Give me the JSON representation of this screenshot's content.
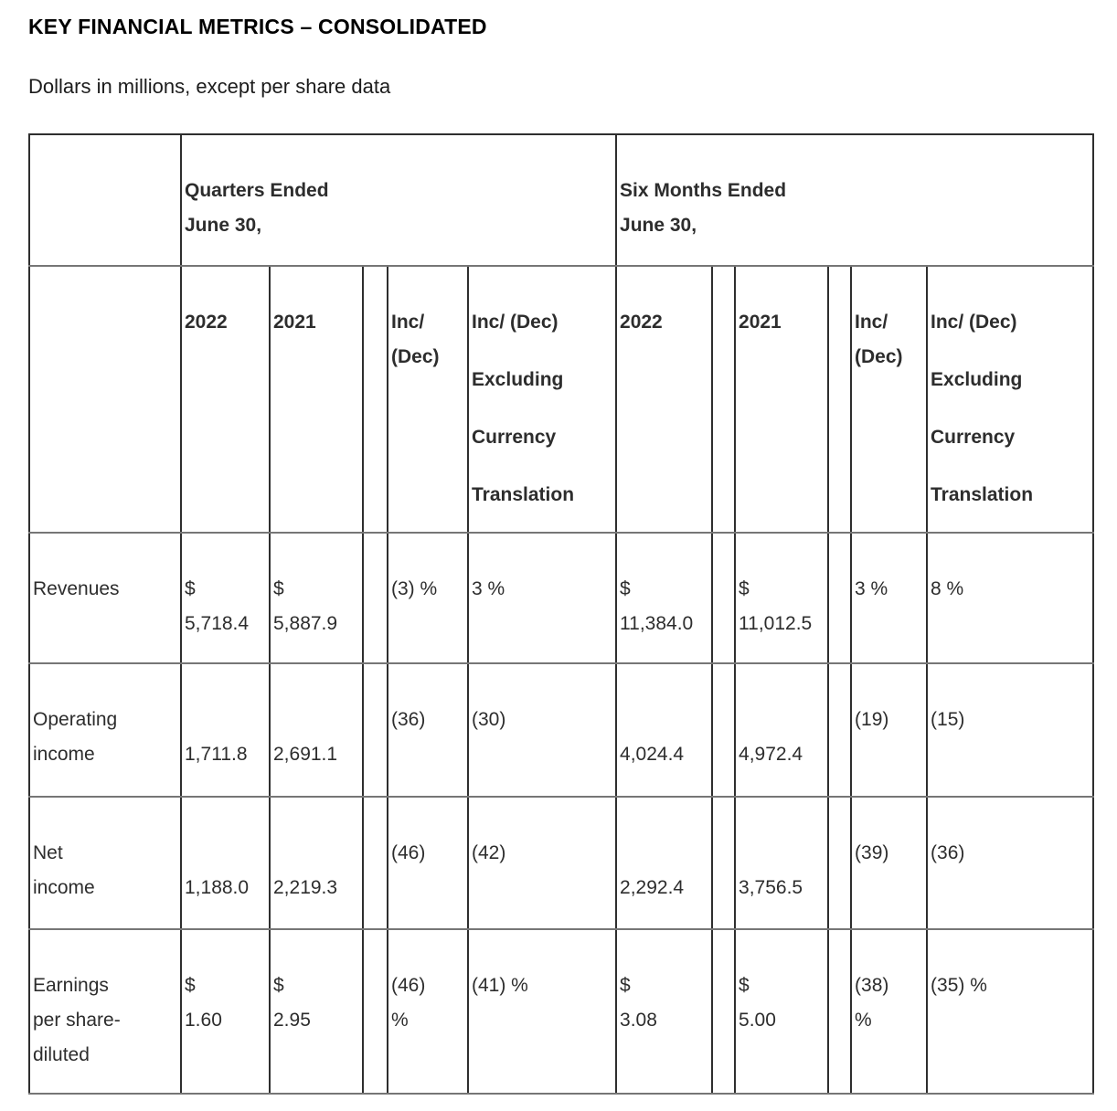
{
  "page": {
    "title": "KEY FINANCIAL METRICS – CONSOLIDATED",
    "subtitle": "Dollars in millions, except per share data"
  },
  "table": {
    "rows": [
      {
        "cells": [
          {
            "lines": [
              ""
            ]
          },
          {
            "lines": [
              "Quarters Ended",
              "June 30,"
            ],
            "colspan": 5,
            "bold": true
          },
          {
            "lines": [
              "Six Months Ended",
              "June 30,"
            ],
            "colspan": 6,
            "bold": true
          }
        ]
      },
      {
        "cells": [
          {
            "lines": [
              ""
            ]
          },
          {
            "lines": [
              "2022"
            ],
            "bold": true
          },
          {
            "lines": [
              "2021"
            ],
            "bold": true
          },
          {
            "lines": [
              ""
            ]
          },
          {
            "lines": [
              "Inc/",
              "(Dec)"
            ],
            "bold": true
          },
          {
            "lines": [
              "Inc/ (Dec)",
              "Excluding",
              "Currency",
              "Translation"
            ],
            "bold": true,
            "gap": true
          },
          {
            "lines": [
              "2022"
            ],
            "bold": true
          },
          {
            "lines": [
              ""
            ]
          },
          {
            "lines": [
              "2021"
            ],
            "bold": true
          },
          {
            "lines": [
              ""
            ]
          },
          {
            "lines": [
              "Inc/",
              "(Dec)"
            ],
            "bold": true
          },
          {
            "lines": [
              "Inc/ (Dec)",
              "Excluding",
              "Currency",
              "Translation"
            ],
            "bold": true,
            "gap": true
          }
        ]
      },
      {
        "cells": [
          {
            "lines": [
              "Revenues"
            ]
          },
          {
            "lines": [
              "$",
              "5,718.4"
            ]
          },
          {
            "lines": [
              "$",
              "5,887.9"
            ]
          },
          {
            "lines": [
              ""
            ]
          },
          {
            "lines": [
              "(3) %"
            ]
          },
          {
            "lines": [
              "3 %"
            ]
          },
          {
            "lines": [
              "$",
              "11,384.0"
            ]
          },
          {
            "lines": [
              ""
            ]
          },
          {
            "lines": [
              "$",
              "11,012.5"
            ]
          },
          {
            "lines": [
              ""
            ]
          },
          {
            "lines": [
              "3 %"
            ]
          },
          {
            "lines": [
              "8 %"
            ]
          }
        ]
      },
      {
        "cells": [
          {
            "lines": [
              "Operating",
              "income"
            ]
          },
          {
            "lines": [
              "",
              "1,711.8"
            ]
          },
          {
            "lines": [
              "",
              "2,691.1"
            ]
          },
          {
            "lines": [
              ""
            ]
          },
          {
            "lines": [
              "(36)"
            ]
          },
          {
            "lines": [
              "(30)"
            ]
          },
          {
            "lines": [
              "",
              "4,024.4"
            ]
          },
          {
            "lines": [
              ""
            ]
          },
          {
            "lines": [
              "",
              "4,972.4"
            ]
          },
          {
            "lines": [
              ""
            ]
          },
          {
            "lines": [
              "(19)"
            ]
          },
          {
            "lines": [
              "(15)"
            ]
          }
        ]
      },
      {
        "cells": [
          {
            "lines": [
              "Net",
              "income"
            ]
          },
          {
            "lines": [
              "",
              "1,188.0"
            ]
          },
          {
            "lines": [
              "",
              "2,219.3"
            ]
          },
          {
            "lines": [
              ""
            ]
          },
          {
            "lines": [
              "(46)"
            ]
          },
          {
            "lines": [
              "(42)"
            ]
          },
          {
            "lines": [
              "",
              "2,292.4"
            ]
          },
          {
            "lines": [
              ""
            ]
          },
          {
            "lines": [
              "",
              "3,756.5"
            ]
          },
          {
            "lines": [
              ""
            ]
          },
          {
            "lines": [
              "(39)"
            ]
          },
          {
            "lines": [
              "(36)"
            ]
          }
        ]
      },
      {
        "cells": [
          {
            "lines": [
              "Earnings",
              "per share-",
              "diluted"
            ]
          },
          {
            "lines": [
              "$",
              "1.60"
            ]
          },
          {
            "lines": [
              "$",
              "2.95"
            ]
          },
          {
            "lines": [
              ""
            ]
          },
          {
            "lines": [
              "(46)",
              "%"
            ]
          },
          {
            "lines": [
              "(41) %"
            ]
          },
          {
            "lines": [
              "$",
              "3.08"
            ]
          },
          {
            "lines": [
              ""
            ]
          },
          {
            "lines": [
              "$",
              "5.00"
            ]
          },
          {
            "lines": [
              ""
            ]
          },
          {
            "lines": [
              "(38)",
              "%"
            ]
          },
          {
            "lines": [
              "(35) %"
            ]
          }
        ]
      }
    ]
  }
}
